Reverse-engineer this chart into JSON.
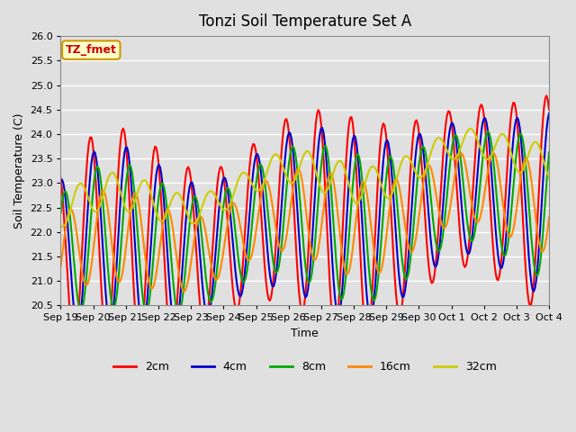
{
  "title": "Tonzi Soil Temperature Set A",
  "xlabel": "Time",
  "ylabel": "Soil Temperature (C)",
  "annotation_text": "TZ_fmet",
  "annotation_bg": "#ffffcc",
  "annotation_border": "#cc9900",
  "annotation_text_color": "#cc0000",
  "ylim": [
    20.5,
    26.0
  ],
  "background_color": "#e0e0e0",
  "plot_bg": "#e0e0e0",
  "grid_color": "#ffffff",
  "series": {
    "2cm": {
      "color": "#ff0000",
      "lw": 1.5
    },
    "4cm": {
      "color": "#0000cc",
      "lw": 1.5
    },
    "8cm": {
      "color": "#00aa00",
      "lw": 1.5
    },
    "16cm": {
      "color": "#ff8800",
      "lw": 1.5
    },
    "32cm": {
      "color": "#cccc00",
      "lw": 1.5
    }
  },
  "xtick_labels": [
    "Sep 19",
    "Sep 20",
    "Sep 21",
    "Sep 22",
    "Sep 23",
    "Sep 24",
    "Sep 25",
    "Sep 26",
    "Sep 27",
    "Sep 28",
    "Sep 29",
    "Sep 30",
    "Oct 1",
    "Oct 2",
    "Oct 3",
    "Oct 4"
  ],
  "legend_items": [
    "2cm",
    "4cm",
    "8cm",
    "16cm",
    "32cm"
  ],
  "legend_colors": [
    "#ff0000",
    "#0000cc",
    "#00aa00",
    "#ff8800",
    "#cccc00"
  ]
}
